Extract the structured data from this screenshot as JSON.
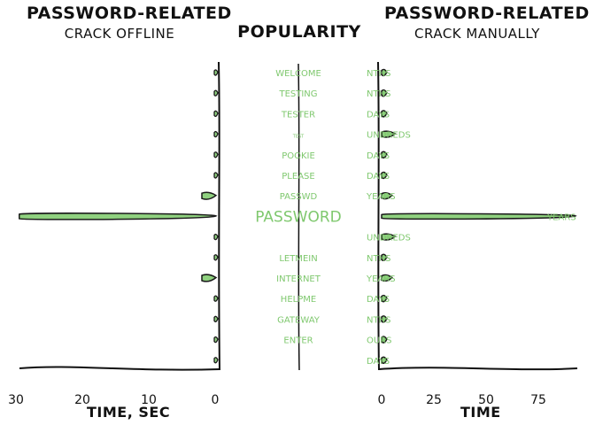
{
  "titles": {
    "left_main": "PASSWORD-RELATED",
    "left_sub": "CRACK OFFLINE",
    "center": "POPULARITY",
    "right_main": "PASSWORD-RELATED",
    "right_sub": "CRACK MANUALLY"
  },
  "colors": {
    "bar_fill": "#8fd17f",
    "bar_stroke": "#1a1a1a",
    "label_green": "#7fc86e",
    "axis": "#111111"
  },
  "chart_data": [
    {
      "type": "bar",
      "orientation": "horizontal",
      "title": "PASSWORD-RELATED CRACK OFFLINE",
      "xlabel": "TIME, SEC",
      "xlim": [
        30,
        0
      ],
      "x_reversed": true,
      "xticks": [
        "30",
        "20",
        "10",
        "0"
      ],
      "xtick_values": [
        30,
        20,
        10,
        0
      ],
      "categories": [
        "WELCOME",
        "TESTING",
        "TESTER",
        "TEST",
        "POOKIE",
        "PLEASE",
        "PASSWD",
        "PASSWORD",
        "",
        "LETMEIN",
        "INTERNET",
        "HELPME",
        "GATEWAY",
        "ENTER",
        ""
      ],
      "values": [
        0.3,
        0.3,
        0.3,
        0.3,
        0.3,
        0.3,
        2.0,
        29.5,
        0.3,
        0.3,
        2.0,
        0.3,
        0.3,
        0.3,
        0.3
      ]
    },
    {
      "type": "table",
      "title": "POPULARITY",
      "categories": [
        "WELCOME",
        "TESTING",
        "TESTER",
        "TEST",
        "POOKIE",
        "PLEASE",
        "PASSWD",
        "PASSWORD",
        "",
        "LETMEIN",
        "INTERNET",
        "HELPME",
        "GATEWAY",
        "ENTER",
        ""
      ],
      "emphasis": [
        "normal",
        "normal",
        "normal",
        "tiny",
        "normal",
        "normal",
        "normal",
        "large",
        "tiny",
        "normal",
        "normal",
        "normal",
        "normal",
        "normal",
        "tiny"
      ]
    },
    {
      "type": "bar",
      "orientation": "horizontal",
      "title": "PASSWORD-RELATED CRACK MANUALLY",
      "xlabel": "TIME",
      "xlim": [
        0,
        93
      ],
      "xticks": [
        "0",
        "25",
        "50",
        "75"
      ],
      "xtick_values": [
        0,
        25,
        50,
        75
      ],
      "value_labels": [
        "NTHS",
        "NTHS",
        "DAYS",
        "UNDREDS",
        "DAYS",
        "DAYS",
        "YEARS",
        "YEARS",
        "UNDREDS",
        "NTHS",
        "YEARS",
        "DAYS",
        "NTHS",
        "OURS",
        "DAYS"
      ],
      "values": [
        2.5,
        2.5,
        2.5,
        6.5,
        2.5,
        2.5,
        5.0,
        94,
        6.5,
        2.5,
        5.0,
        2.5,
        2.5,
        2.5,
        2.5
      ]
    }
  ]
}
